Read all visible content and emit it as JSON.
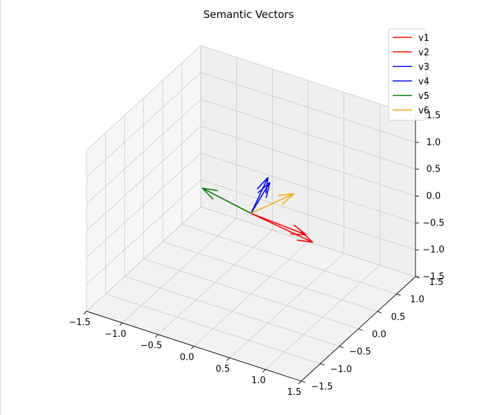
{
  "chart_data": {
    "type": "3d-vector",
    "title": "Semantic Vectors",
    "xlabel": "",
    "ylabel": "",
    "zlabel": "",
    "xlim": [
      -1.5,
      1.5
    ],
    "ylim": [
      -1.5,
      1.5
    ],
    "zlim": [
      -1.5,
      1.5
    ],
    "x_ticks": [
      "−1.5",
      "−1.0",
      "−0.5",
      "0.0",
      "0.5",
      "1.0",
      "1.5"
    ],
    "y_ticks": [
      "−1.5",
      "−1.0",
      "−0.5",
      "0.0",
      "0.5",
      "1.0",
      "1.5"
    ],
    "z_ticks": [
      "−1.5",
      "−1.0",
      "−0.5",
      "0.0",
      "0.5",
      "1.0",
      "1.5"
    ],
    "grid": true,
    "legend_position": "top-right",
    "series": [
      {
        "name": "v1",
        "color": "#ff0000",
        "origin": [
          0,
          0,
          0
        ],
        "vector": [
          0.67,
          0.36,
          -0.48
        ]
      },
      {
        "name": "v2",
        "color": "#ff0000",
        "origin": [
          0,
          0,
          0
        ],
        "vector": [
          0.57,
          0.38,
          -0.4
        ]
      },
      {
        "name": "v3",
        "color": "#0000ff",
        "origin": [
          0,
          0,
          0
        ],
        "vector": [
          0.12,
          0.22,
          0.58
        ]
      },
      {
        "name": "v4",
        "color": "#0000ff",
        "origin": [
          0,
          0,
          0
        ],
        "vector": [
          0.13,
          0.25,
          0.47
        ]
      },
      {
        "name": "v5",
        "color": "#008000",
        "origin": [
          0,
          0,
          0
        ],
        "vector": [
          -0.53,
          -0.29,
          0.43
        ]
      },
      {
        "name": "v6",
        "color": "#ffa500",
        "origin": [
          0,
          0,
          0
        ],
        "vector": [
          0.45,
          0.28,
          0.38
        ]
      }
    ]
  }
}
